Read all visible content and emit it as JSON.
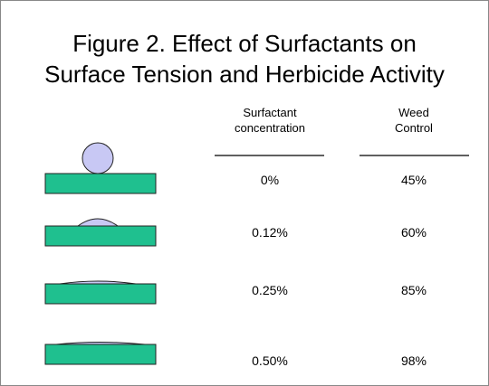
{
  "header": {
    "title": [
      "Figure 2.  Effect of Surfactants on",
      "Surface Tension and Herbicide Activity"
    ]
  },
  "table": {
    "columns": [
      [
        "Surfactant",
        "concentration"
      ],
      [
        "Weed",
        "Control"
      ]
    ],
    "rows": [
      [
        "0%",
        "45%"
      ],
      [
        "0.12%",
        "60%"
      ],
      [
        "0.25%",
        "85%"
      ],
      [
        "0.50%",
        "98%"
      ]
    ]
  }
}
